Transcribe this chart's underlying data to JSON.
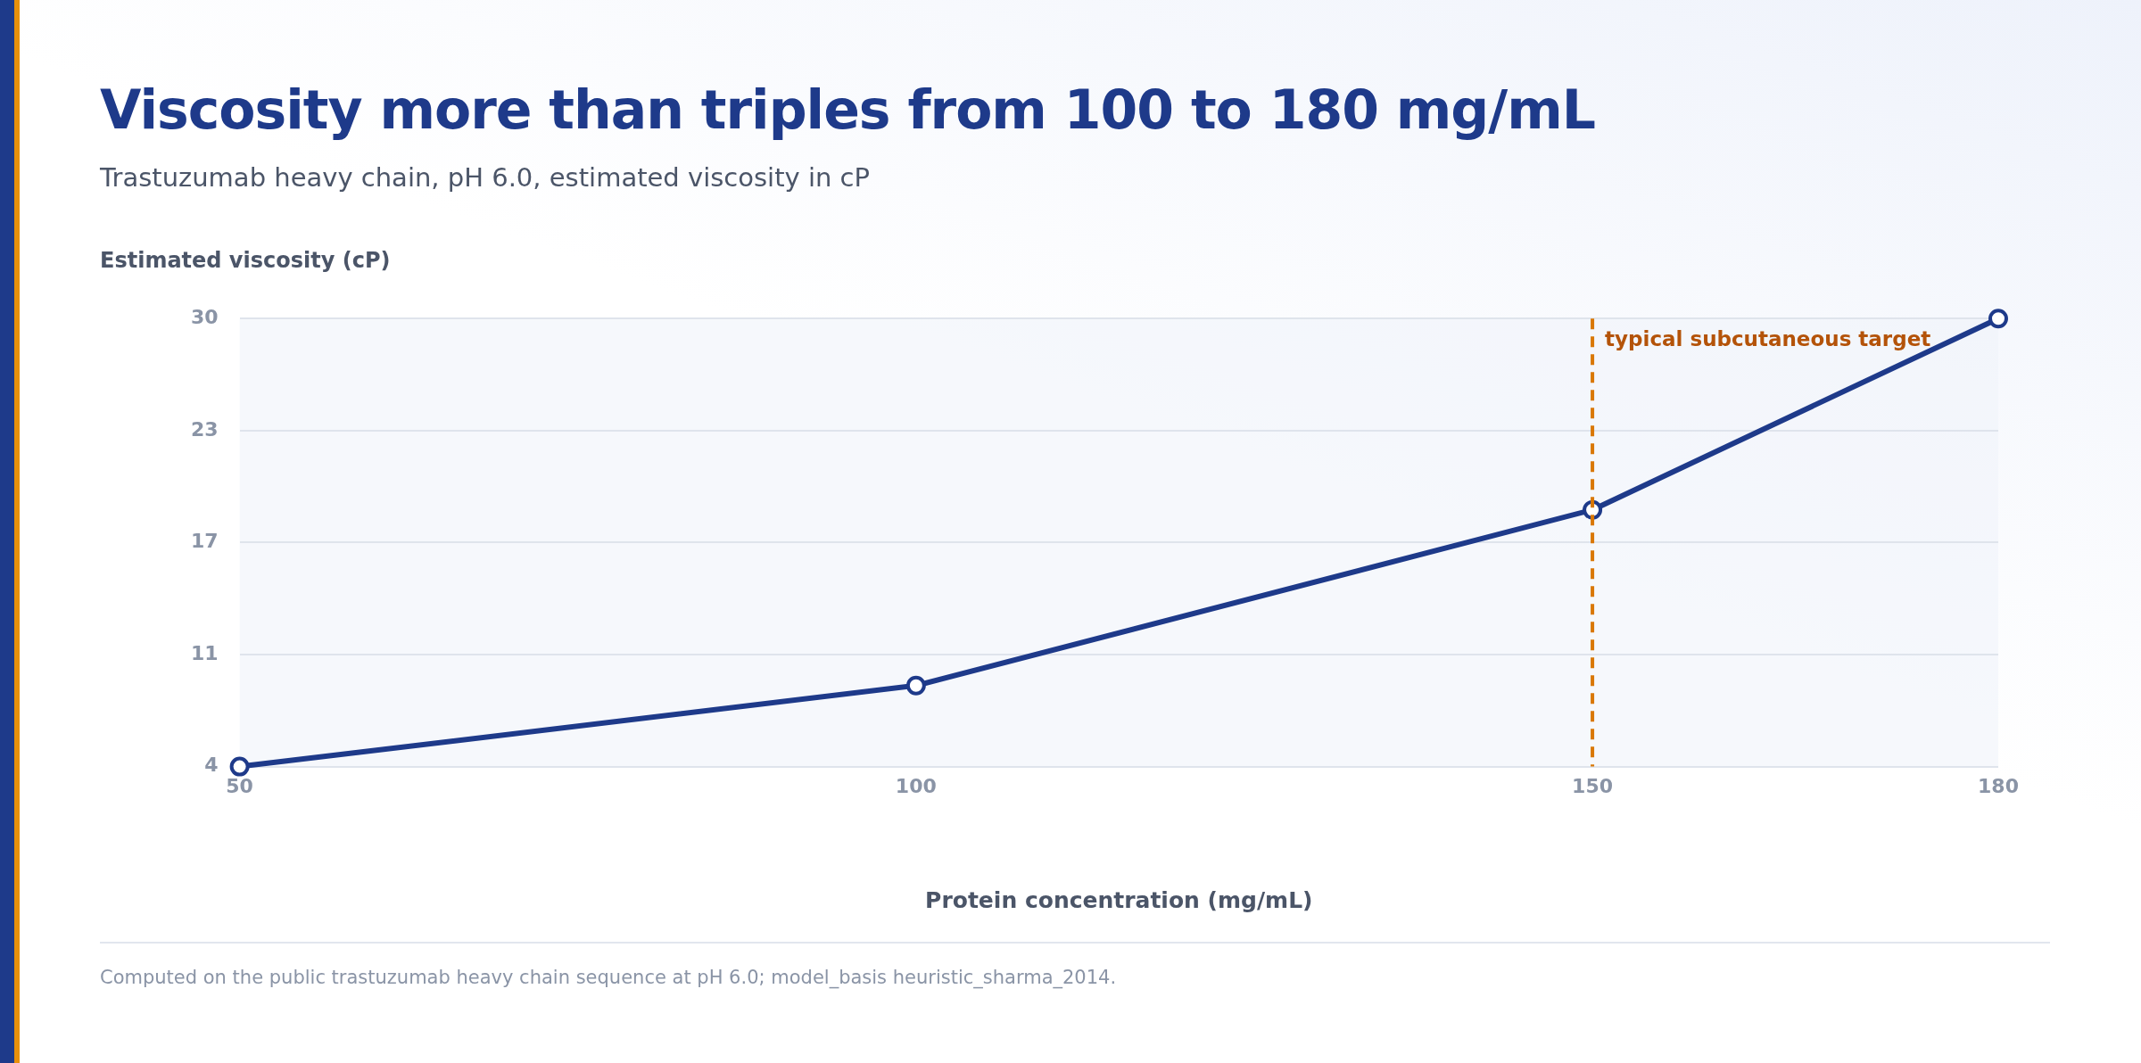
{
  "chart_data": {
    "type": "line",
    "title": "Viscosity more than triples from 100 to 180 mg/mL",
    "subtitle": "Trastuzumab heavy chain, pH 6.0, estimated viscosity in cP",
    "xlabel": "Protein concentration (mg/mL)",
    "ylabel": "Estimated viscosity (cP)",
    "x": [
      50,
      100,
      150,
      180
    ],
    "series": [
      {
        "color": "#1e3a8a",
        "values": [
          4,
          8.7,
          18.9,
          30
        ]
      }
    ],
    "xlim": [
      50,
      180
    ],
    "xticks": [
      50,
      100,
      150,
      180
    ],
    "ylim": [
      4,
      30
    ],
    "yticks": [
      4,
      {
        "value": 10.5,
        "label": "11"
      },
      17,
      {
        "value": 23.5,
        "label": "23"
      },
      30
    ],
    "grid": "y",
    "legend": false,
    "marker": "circle",
    "line_style": "solid",
    "ref_lines": [
      {
        "axis": "x",
        "value": 150,
        "label": "typical subcutaneous target",
        "color": "#d97706",
        "line_style": "dashed"
      }
    ],
    "annotations": [
      "Computed on the public trastuzumab heavy chain sequence at pH 6.0; model_basis heuristic_sharma_2014."
    ]
  }
}
